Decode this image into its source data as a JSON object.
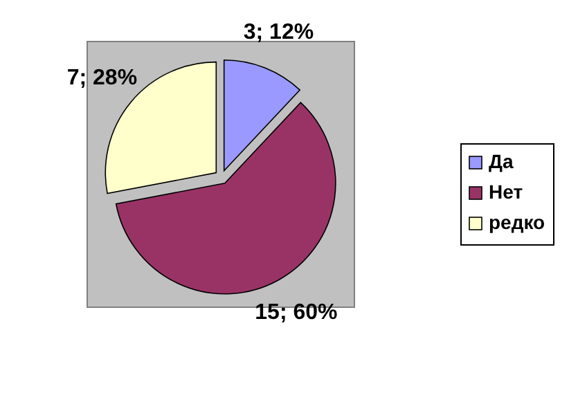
{
  "chart_data": {
    "type": "pie",
    "categories": [
      "Да",
      "Нет",
      "редко"
    ],
    "values": [
      3,
      15,
      7
    ],
    "colors": [
      "#9999ff",
      "#993366",
      "#ffffcc"
    ],
    "value_labels": [
      "3; 12%",
      "15; 60%",
      "7; 28%"
    ],
    "legend": "right"
  }
}
